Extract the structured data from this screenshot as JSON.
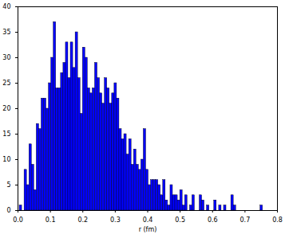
{
  "chart_data": {
    "type": "histogram",
    "x_label": "r (fm)",
    "bins": [
      0.005,
      0.0125,
      0.02,
      0.0275,
      0.035,
      0.0425,
      0.05,
      0.0575,
      0.065,
      0.0725,
      0.08,
      0.0875,
      0.095,
      0.1025,
      0.11,
      0.1175,
      0.125,
      0.1325,
      0.14,
      0.1475,
      0.155,
      0.1625,
      0.17,
      0.1775,
      0.185,
      0.1925,
      0.2,
      0.2075,
      0.215,
      0.2225,
      0.23,
      0.2375,
      0.245,
      0.2525,
      0.26,
      0.2675,
      0.275,
      0.2825,
      0.29,
      0.2975,
      0.305,
      0.3125,
      0.32,
      0.3275,
      0.335,
      0.3425,
      0.35,
      0.3575,
      0.365,
      0.3725,
      0.38,
      0.3875,
      0.395,
      0.4025,
      0.41,
      0.4175,
      0.425,
      0.4325,
      0.44,
      0.4475,
      0.455,
      0.4625,
      0.47,
      0.4775,
      0.485,
      0.4925,
      0.5,
      0.5075,
      0.515,
      0.5225,
      0.53,
      0.5375,
      0.545,
      0.5525,
      0.56,
      0.5675,
      0.575,
      0.5825,
      0.59,
      0.5975,
      0.605,
      0.6125,
      0.62,
      0.6275,
      0.635,
      0.6425,
      0.65,
      0.6575,
      0.665,
      0.6725,
      0.68,
      0.6875,
      0.695,
      0.7025,
      0.71,
      0.7175,
      0.725,
      0.7325,
      0.74,
      0.7475,
      0.755
    ],
    "values": [
      1,
      0,
      8,
      5,
      13,
      9,
      4,
      17,
      16,
      22,
      22,
      20,
      25,
      30,
      37,
      24,
      24,
      27,
      29,
      33,
      26,
      33,
      28,
      35,
      26,
      19,
      32,
      30,
      24,
      23,
      24,
      29,
      26,
      23,
      21,
      26,
      24,
      21,
      23,
      25,
      22,
      16,
      14,
      15,
      11,
      14,
      9,
      12,
      9,
      8,
      10,
      16,
      8,
      5,
      6,
      6,
      6,
      5,
      3,
      6,
      2,
      1,
      5,
      3,
      3,
      2,
      4,
      1,
      3,
      0,
      1,
      3,
      0,
      0,
      3,
      2,
      0,
      1,
      0,
      0,
      2,
      0,
      1,
      0,
      1,
      0,
      0,
      3,
      1,
      0,
      0,
      0,
      0,
      0,
      0,
      0,
      0,
      0,
      0,
      1
    ],
    "color": "#0000ff",
    "xlim": [
      0,
      0.8
    ],
    "xticks": [
      {
        "value": 0,
        "label": "0.0"
      },
      0.1,
      0.2,
      0.3,
      0.4,
      0.5,
      0.6,
      0.7,
      0.8
    ],
    "ylim": [
      0,
      40
    ],
    "yticks": [
      0,
      5,
      10,
      15,
      20,
      25,
      30,
      35,
      40
    ],
    "grid": false
  }
}
